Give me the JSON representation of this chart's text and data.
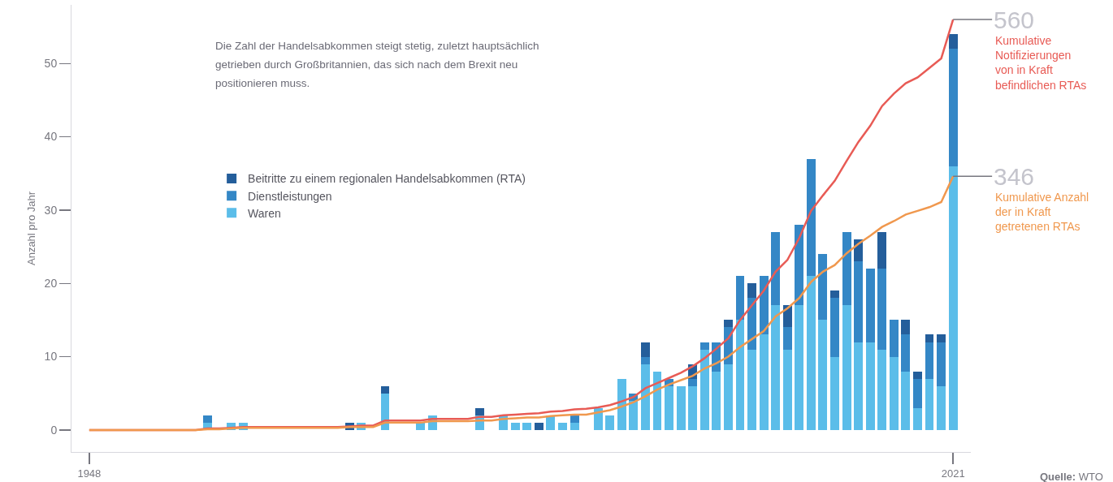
{
  "chart_data": {
    "type": "bar",
    "subtitle": "Die Zahl der Handelsabkommen steigt stetig, zuletzt hauptsächlich getrieben durch Großbritannien, das sich nach dem Brexit neu positionieren muss.",
    "ylabel": "Anzahl pro Jahr",
    "annotations": [
      "Quelle: WTO"
    ],
    "x": [
      1948,
      1949,
      1950,
      1951,
      1952,
      1953,
      1954,
      1955,
      1956,
      1957,
      1958,
      1959,
      1960,
      1961,
      1962,
      1963,
      1964,
      1965,
      1966,
      1967,
      1968,
      1969,
      1970,
      1971,
      1972,
      1973,
      1974,
      1975,
      1976,
      1977,
      1978,
      1979,
      1980,
      1981,
      1982,
      1983,
      1984,
      1985,
      1986,
      1987,
      1988,
      1989,
      1990,
      1991,
      1992,
      1993,
      1994,
      1995,
      1996,
      1997,
      1998,
      1999,
      2000,
      2001,
      2002,
      2003,
      2004,
      2005,
      2006,
      2007,
      2008,
      2009,
      2010,
      2011,
      2012,
      2013,
      2014,
      2015,
      2016,
      2017,
      2018,
      2019,
      2020,
      2021
    ],
    "xlim": [
      1946.5,
      2022.5
    ],
    "xticks": [
      1948,
      2021
    ],
    "ylim": [
      -3,
      58
    ],
    "yticks": [
      0,
      10,
      20,
      30,
      40,
      50
    ],
    "y2lim": [
      -30,
      580
    ],
    "stacked": true,
    "legend": "top left",
    "series": [
      {
        "name": "Waren",
        "color": "#5bbde9",
        "values": [
          0,
          0,
          0,
          0,
          0,
          0,
          0,
          0,
          0,
          0,
          1,
          0,
          1,
          1,
          0,
          0,
          0,
          0,
          0,
          0,
          0,
          0,
          0,
          1,
          0,
          5,
          0,
          0,
          1,
          2,
          0,
          0,
          0,
          2,
          0,
          2,
          1,
          1,
          0,
          2,
          1,
          1,
          0,
          3,
          2,
          7,
          4,
          9,
          8,
          6,
          6,
          6,
          11,
          8,
          9,
          15,
          11,
          13,
          17,
          11,
          17,
          21,
          15,
          10,
          17,
          12,
          12,
          11,
          10,
          8,
          3,
          7,
          6,
          36
        ]
      },
      {
        "name": "Dienstleistungen",
        "color": "#3487c6",
        "values": [
          0,
          0,
          0,
          0,
          0,
          0,
          0,
          0,
          0,
          0,
          1,
          0,
          0,
          0,
          0,
          0,
          0,
          0,
          0,
          0,
          0,
          0,
          0,
          0,
          0,
          0,
          0,
          0,
          0,
          0,
          0,
          0,
          0,
          0,
          0,
          0,
          0,
          0,
          0,
          0,
          0,
          1,
          0,
          0,
          0,
          0,
          1,
          1,
          0,
          1,
          0,
          1,
          1,
          4,
          5,
          6,
          7,
          8,
          10,
          3,
          11,
          16,
          9,
          8,
          10,
          11,
          10,
          11,
          5,
          5,
          4,
          5,
          6,
          16
        ]
      },
      {
        "name": "Beitritte zu einem regionalen Handelsabkommen (RTA)",
        "color": "#245e9b",
        "values": [
          0,
          0,
          0,
          0,
          0,
          0,
          0,
          0,
          0,
          0,
          0,
          0,
          0,
          0,
          0,
          0,
          0,
          0,
          0,
          0,
          0,
          0,
          1,
          0,
          0,
          1,
          0,
          0,
          0,
          0,
          0,
          0,
          0,
          1,
          0,
          0,
          0,
          0,
          1,
          0,
          0,
          0,
          0,
          0,
          0,
          0,
          0,
          2,
          0,
          0,
          0,
          2,
          0,
          0,
          1,
          0,
          2,
          0,
          0,
          3,
          0,
          0,
          0,
          1,
          0,
          3,
          0,
          5,
          0,
          2,
          1,
          1,
          1,
          2
        ]
      },
      {
        "name": "Kumulative Notifizierungen von in Kraft befindlichen RTAs",
        "type": "line",
        "axis": "y2",
        "color": "#e85b55",
        "values": [
          0,
          0,
          0,
          0,
          0,
          0,
          0,
          0,
          0,
          0,
          2,
          2,
          3,
          4,
          4,
          4,
          4,
          4,
          4,
          4,
          4,
          4,
          5,
          6,
          6,
          13,
          13,
          13,
          13,
          15,
          15,
          15,
          15,
          18,
          18,
          20,
          21,
          22,
          23,
          25,
          26,
          28,
          29,
          31,
          34,
          39,
          45,
          57,
          64,
          71,
          78,
          87,
          98,
          111,
          125,
          150,
          170,
          190,
          216,
          232,
          262,
          299,
          320,
          340,
          367,
          393,
          415,
          442,
          459,
          473,
          481,
          494,
          507,
          560
        ],
        "value_labels": [
          null,
          null,
          null,
          null,
          null,
          null,
          null,
          null,
          null,
          null,
          null,
          null,
          null,
          null,
          null,
          null,
          null,
          null,
          null,
          null,
          null,
          null,
          null,
          null,
          null,
          null,
          null,
          null,
          null,
          null,
          null,
          null,
          null,
          null,
          null,
          null,
          null,
          null,
          null,
          null,
          null,
          null,
          null,
          null,
          null,
          null,
          null,
          null,
          null,
          null,
          null,
          null,
          null,
          null,
          null,
          null,
          null,
          null,
          null,
          null,
          null,
          null,
          null,
          null,
          null,
          null,
          null,
          null,
          null,
          null,
          null,
          null,
          null,
          "560"
        ]
      },
      {
        "name": "Kumulative Anzahl der in Kraft getretenen RTAs",
        "type": "line",
        "axis": "y2",
        "color": "#f0984e",
        "values": [
          0,
          0,
          0,
          0,
          0,
          0,
          0,
          0,
          0,
          0,
          1,
          1,
          2,
          3,
          3,
          3,
          3,
          3,
          3,
          3,
          3,
          3,
          4,
          4,
          4,
          10,
          10,
          10,
          10,
          12,
          12,
          12,
          12,
          13,
          13,
          15,
          16,
          17,
          17,
          19,
          20,
          21,
          21,
          24,
          27,
          32,
          38,
          46,
          55,
          62,
          68,
          74,
          84,
          91,
          100,
          113,
          124,
          135,
          155,
          166,
          180,
          202,
          216,
          225,
          241,
          254,
          265,
          277,
          285,
          294,
          299,
          304,
          311,
          346
        ],
        "value_labels": [
          null,
          null,
          null,
          null,
          null,
          null,
          null,
          null,
          null,
          null,
          null,
          null,
          null,
          null,
          null,
          null,
          null,
          null,
          null,
          null,
          null,
          null,
          null,
          null,
          null,
          null,
          null,
          null,
          null,
          null,
          null,
          null,
          null,
          null,
          null,
          null,
          null,
          null,
          null,
          null,
          null,
          null,
          null,
          null,
          null,
          null,
          null,
          null,
          null,
          null,
          null,
          null,
          null,
          null,
          null,
          null,
          null,
          null,
          null,
          null,
          null,
          null,
          null,
          null,
          null,
          null,
          null,
          null,
          null,
          null,
          null,
          null,
          null,
          "346"
        ]
      }
    ]
  }
}
